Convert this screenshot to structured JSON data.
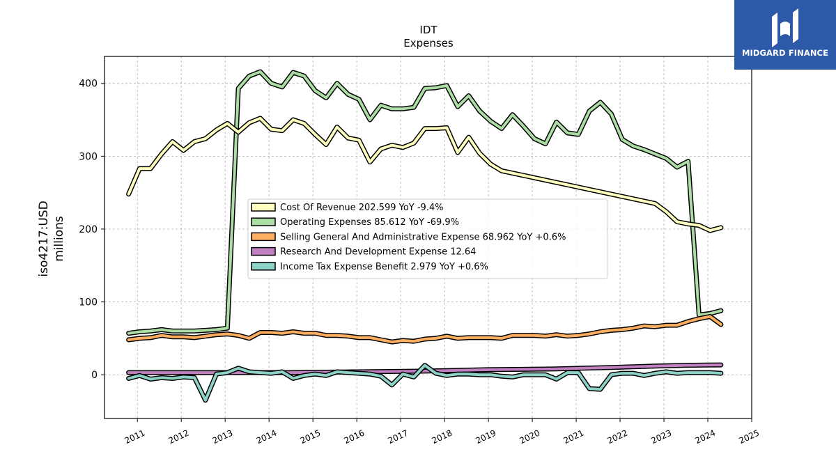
{
  "colors": {
    "cost_of_revenue": "#ffffbf",
    "operating_expenses": "#abdda4",
    "sga": "#fdae61",
    "rnd": "#c080c0",
    "income_tax": "#8ed1c6",
    "logo_bg": "#2d5aa8"
  },
  "logo": {
    "text": "MIDGARD FINANCE",
    "icon": "midgard-logo-icon"
  },
  "chart_data": {
    "type": "line",
    "title": "IDT",
    "subtitle": "Expenses",
    "ylabel": "iso4217:USD",
    "ylabel2": "millions",
    "xlim": [
      2010.25,
      2025.0
    ],
    "ylim": [
      -60,
      437
    ],
    "grid": true,
    "legend_position": "center",
    "xticks": [
      {
        "v": 2011,
        "label": "2011"
      },
      {
        "v": 2012,
        "label": "2012"
      },
      {
        "v": 2013,
        "label": "2013"
      },
      {
        "v": 2014,
        "label": "2014"
      },
      {
        "v": 2015,
        "label": "2015"
      },
      {
        "v": 2016,
        "label": "2016"
      },
      {
        "v": 2017,
        "label": "2017"
      },
      {
        "v": 2018,
        "label": "2018"
      },
      {
        "v": 2019,
        "label": "2019"
      },
      {
        "v": 2020,
        "label": "2020"
      },
      {
        "v": 2021,
        "label": "2021"
      },
      {
        "v": 2022,
        "label": "2022"
      },
      {
        "v": 2023,
        "label": "2023"
      },
      {
        "v": 2024,
        "label": "2024"
      },
      {
        "v": 2025,
        "label": "2025"
      }
    ],
    "yticks": [
      {
        "v": 0,
        "label": "0"
      },
      {
        "v": 100,
        "label": "100"
      },
      {
        "v": 200,
        "label": "200"
      },
      {
        "v": 300,
        "label": "300"
      },
      {
        "v": 400,
        "label": "400"
      }
    ],
    "series": [
      {
        "key": "operating_expenses",
        "name": "Operating Expenses",
        "legend": "Operating Expenses  85.612 YoY -69.9%",
        "x": [
          2010.8,
          2011.05,
          2011.3,
          2011.55,
          2011.8,
          2012.05,
          2012.3,
          2012.55,
          2012.8,
          2013.05,
          2013.3,
          2013.55,
          2013.8,
          2014.05,
          2014.3,
          2014.55,
          2014.8,
          2015.05,
          2015.3,
          2015.55,
          2015.8,
          2016.05,
          2016.3,
          2016.55,
          2016.8,
          2017.05,
          2017.3,
          2017.55,
          2017.8,
          2018.05,
          2018.3,
          2018.55,
          2018.8,
          2019.05,
          2019.3,
          2019.55,
          2019.8,
          2020.05,
          2020.3,
          2020.55,
          2020.8,
          2021.05,
          2021.3,
          2021.55,
          2021.8,
          2022.05,
          2022.3,
          2022.55,
          2022.8,
          2023.05,
          2023.3,
          2023.55,
          2023.8,
          2024.05,
          2024.3
        ],
        "y": [
          57,
          59,
          60,
          62,
          60,
          60,
          60,
          61,
          62,
          64,
          393,
          410,
          416,
          400,
          395,
          415,
          410,
          390,
          380,
          400,
          385,
          378,
          350,
          370,
          365,
          365,
          367,
          393,
          394,
          397,
          368,
          383,
          362,
          348,
          338,
          357,
          341,
          324,
          317,
          347,
          332,
          330,
          362,
          374,
          358,
          323,
          314,
          309,
          303,
          297,
          285,
          293,
          82,
          84,
          88
        ]
      },
      {
        "key": "cost_of_revenue",
        "name": "Cost Of Revenue",
        "legend": "Cost Of Revenue  202.599 YoY -9.4%",
        "x": [
          2010.8,
          2011.05,
          2011.3,
          2011.55,
          2011.8,
          2012.05,
          2012.3,
          2012.55,
          2012.8,
          2013.05,
          2013.3,
          2013.55,
          2013.8,
          2014.05,
          2014.3,
          2014.55,
          2014.8,
          2015.05,
          2015.3,
          2015.55,
          2015.8,
          2016.05,
          2016.3,
          2016.55,
          2016.8,
          2017.05,
          2017.3,
          2017.55,
          2017.8,
          2018.05,
          2018.3,
          2018.55,
          2018.8,
          2019.05,
          2019.3,
          2022.8,
          2023.05,
          2023.3,
          2023.55,
          2023.8,
          2024.05,
          2024.3
        ],
        "y": [
          248,
          283,
          283,
          303,
          320,
          308,
          320,
          324,
          336,
          345,
          333,
          346,
          352,
          337,
          335,
          350,
          345,
          330,
          316,
          340,
          325,
          322,
          292,
          310,
          315,
          312,
          318,
          338,
          338,
          339,
          305,
          326,
          304,
          289,
          280,
          235,
          224,
          210,
          207,
          205,
          198,
          202
        ]
      },
      {
        "key": "sga",
        "name": "Selling General And Administrative Expense",
        "legend": "Selling General And Administrative Expense  68.962 YoY +0.6%",
        "x": [
          2010.8,
          2011.05,
          2011.3,
          2011.55,
          2011.8,
          2012.05,
          2012.3,
          2012.55,
          2012.8,
          2013.05,
          2013.3,
          2013.55,
          2013.8,
          2014.05,
          2014.3,
          2014.55,
          2014.8,
          2015.05,
          2015.3,
          2015.55,
          2015.8,
          2016.05,
          2016.3,
          2016.55,
          2016.8,
          2017.05,
          2017.3,
          2017.55,
          2017.8,
          2018.05,
          2018.3,
          2018.55,
          2018.8,
          2019.05,
          2019.3,
          2019.55,
          2019.8,
          2020.05,
          2020.3,
          2020.55,
          2020.8,
          2021.05,
          2021.3,
          2021.55,
          2021.8,
          2022.05,
          2022.3,
          2022.55,
          2022.8,
          2023.05,
          2023.3,
          2023.55,
          2023.8,
          2024.05,
          2024.3
        ],
        "y": [
          48,
          50,
          51,
          54,
          52,
          52,
          51,
          53,
          55,
          56,
          54,
          50,
          58,
          58,
          57,
          59,
          57,
          57,
          54,
          54,
          53,
          51,
          51,
          48,
          45,
          47,
          46,
          49,
          50,
          53,
          50,
          51,
          51,
          51,
          50,
          54,
          54,
          54,
          53,
          55,
          53,
          54,
          56,
          59,
          61,
          62,
          64,
          67,
          66,
          68,
          68,
          73,
          77,
          80,
          69
        ]
      },
      {
        "key": "rnd",
        "name": "Research And Development Expense",
        "legend": "Research And Development Expense  12.64",
        "x": [
          2010.8,
          2013.0,
          2014.5,
          2016.0,
          2017.5,
          2019.0,
          2020.5,
          2021.8,
          2022.8,
          2023.5,
          2024.3
        ],
        "y": [
          3,
          3,
          3,
          4,
          5,
          7,
          8,
          10,
          12,
          13,
          13.5
        ]
      },
      {
        "key": "income_tax",
        "name": "Income Tax Expense Benefit",
        "legend": "Income Tax Expense Benefit  2.979 YoY +0.6%",
        "x": [
          2010.8,
          2011.05,
          2011.3,
          2011.55,
          2011.8,
          2012.05,
          2012.3,
          2012.55,
          2012.8,
          2013.05,
          2013.3,
          2013.55,
          2013.8,
          2014.05,
          2014.3,
          2014.55,
          2014.8,
          2015.05,
          2015.3,
          2015.55,
          2015.8,
          2016.05,
          2016.3,
          2016.55,
          2016.8,
          2017.05,
          2017.3,
          2017.55,
          2017.8,
          2018.05,
          2018.3,
          2018.55,
          2018.8,
          2019.05,
          2019.3,
          2019.55,
          2019.8,
          2020.05,
          2020.3,
          2020.55,
          2020.8,
          2021.05,
          2021.3,
          2021.55,
          2021.8,
          2022.05,
          2022.3,
          2022.55,
          2022.8,
          2023.05,
          2023.3,
          2023.55,
          2023.8,
          2024.05,
          2024.3
        ],
        "y": [
          -5,
          -1,
          -6,
          -4,
          -5,
          -3,
          -4,
          -35,
          1,
          3,
          9,
          4,
          3,
          2,
          4,
          -5,
          -1,
          1,
          -1,
          4,
          3,
          2,
          1,
          -2,
          -14,
          1,
          -3,
          13,
          2,
          -1,
          1,
          1,
          0,
          0,
          -2,
          -3,
          0,
          0,
          0,
          -6,
          3,
          3,
          -19,
          -20,
          0,
          2,
          2,
          -1,
          2,
          4,
          2,
          3,
          3,
          3,
          2
        ]
      }
    ],
    "legend_order": [
      "cost_of_revenue",
      "operating_expenses",
      "sga",
      "rnd",
      "income_tax"
    ]
  }
}
